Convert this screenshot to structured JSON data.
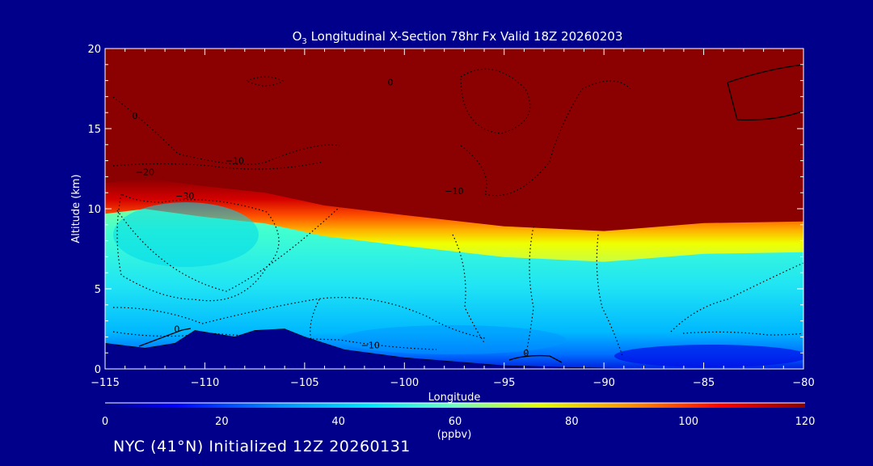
{
  "chart_data": {
    "type": "heatmap",
    "title": {
      "prefix": "O",
      "subscript": "3",
      "rest": " Longitudinal X-Section 78hr  Fx Valid 18Z 20260203"
    },
    "xlabel": "Longitude",
    "ylabel": "Altitude (km)",
    "xlim": [
      -115,
      -80
    ],
    "ylim": [
      0,
      20
    ],
    "x_ticks": [
      -115,
      -110,
      -105,
      -100,
      -95,
      -90,
      -85,
      -80
    ],
    "x_tick_labels": [
      "−115",
      "−110",
      "−105",
      "−100",
      "−95",
      "−90",
      "−85",
      "−80"
    ],
    "y_ticks": [
      0,
      5,
      10,
      15,
      20
    ],
    "y_tick_labels": [
      "0",
      "5",
      "10",
      "15",
      "20"
    ],
    "colorbar": {
      "range": [
        0,
        120
      ],
      "ticks": [
        0,
        20,
        40,
        60,
        80,
        100,
        120
      ],
      "tick_labels": [
        "0",
        "20",
        "40",
        "60",
        "80",
        "100",
        "120"
      ],
      "units": "(ppbv)",
      "colors": [
        "#00008b",
        "#0000ff",
        "#0090ff",
        "#00e8ff",
        "#70ffc0",
        "#e0ff00",
        "#ff9000",
        "#ff0000",
        "#8b0000"
      ]
    },
    "tropopause_height_km": [
      {
        "lon": -115,
        "z": 11.2
      },
      {
        "lon": -113,
        "z": 11.5
      },
      {
        "lon": -110,
        "z": 11.0
      },
      {
        "lon": -107,
        "z": 10.6
      },
      {
        "lon": -104,
        "z": 9.8
      },
      {
        "lon": -100,
        "z": 9.2
      },
      {
        "lon": -95,
        "z": 8.5
      },
      {
        "lon": -90,
        "z": 8.2
      },
      {
        "lon": -85,
        "z": 8.7
      },
      {
        "lon": -80,
        "z": 8.8
      }
    ],
    "terrain_km": [
      {
        "lon": -115,
        "z": 1.6
      },
      {
        "lon": -113,
        "z": 1.3
      },
      {
        "lon": -111.5,
        "z": 1.6
      },
      {
        "lon": -110.5,
        "z": 2.4
      },
      {
        "lon": -109.5,
        "z": 2.2
      },
      {
        "lon": -108.5,
        "z": 2.0
      },
      {
        "lon": -107.5,
        "z": 2.4
      },
      {
        "lon": -106,
        "z": 2.5
      },
      {
        "lon": -105,
        "z": 2.0
      },
      {
        "lon": -103,
        "z": 1.2
      },
      {
        "lon": -100,
        "z": 0.7
      },
      {
        "lon": -97,
        "z": 0.4
      },
      {
        "lon": -95,
        "z": 0.2
      },
      {
        "lon": -92,
        "z": 0.1
      },
      {
        "lon": -88,
        "z": 0.0
      },
      {
        "lon": -80,
        "z": 0.0
      }
    ],
    "contour_labels": [
      {
        "text": "0",
        "lon": -113.5,
        "z": 15.6
      },
      {
        "text": "0",
        "lon": -100.7,
        "z": 17.7
      },
      {
        "text": "−10",
        "lon": -108.5,
        "z": 12.8
      },
      {
        "text": "−20",
        "lon": -113,
        "z": 12.1
      },
      {
        "text": "−30",
        "lon": -111,
        "z": 10.6
      },
      {
        "text": "−10",
        "lon": -97.5,
        "z": 10.9
      },
      {
        "text": "−10",
        "lon": -101.7,
        "z": 1.3
      },
      {
        "text": "0",
        "lon": -111.4,
        "z": 2.3
      },
      {
        "text": "0",
        "lon": -93.9,
        "z": 0.8
      }
    ],
    "footer": "NYC (41°N) Initialized 12Z 20260131"
  }
}
